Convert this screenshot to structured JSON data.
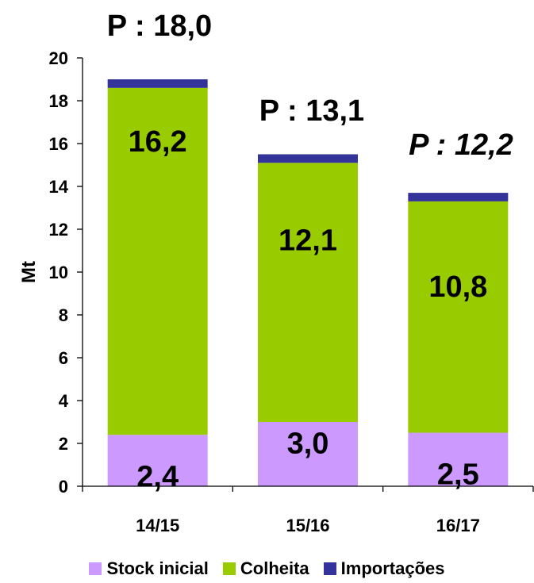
{
  "chart_data": {
    "type": "stacked-bar",
    "ylabel": "Mt",
    "ylim": [
      0,
      20
    ],
    "yticks": [
      0,
      2,
      4,
      6,
      8,
      10,
      12,
      14,
      16,
      18,
      20
    ],
    "categories": [
      "14/15",
      "15/16",
      "16/17"
    ],
    "series": [
      {
        "name": "Stock inicial",
        "color": "#CC99FF",
        "values": [
          2.4,
          3.0,
          2.5
        ],
        "labels": [
          "2,4",
          "3,0",
          "2,5"
        ]
      },
      {
        "name": "Colheita",
        "color": "#99CC00",
        "values": [
          16.2,
          12.1,
          10.8
        ],
        "labels": [
          "16,2",
          "12,1",
          "10,8"
        ]
      },
      {
        "name": "Importações",
        "color": "#333399",
        "values": [
          0.4,
          0.4,
          0.4
        ],
        "labels": [
          "",
          "",
          ""
        ]
      }
    ],
    "annotations": [
      {
        "text": "P : 18,0",
        "category": "14/15",
        "italic": false
      },
      {
        "text": "P : 13,1",
        "category": "15/16",
        "italic": false
      },
      {
        "text": "P : 12,2",
        "category": "16/17",
        "italic": true
      }
    ],
    "grid": false,
    "legend": "bottom"
  }
}
